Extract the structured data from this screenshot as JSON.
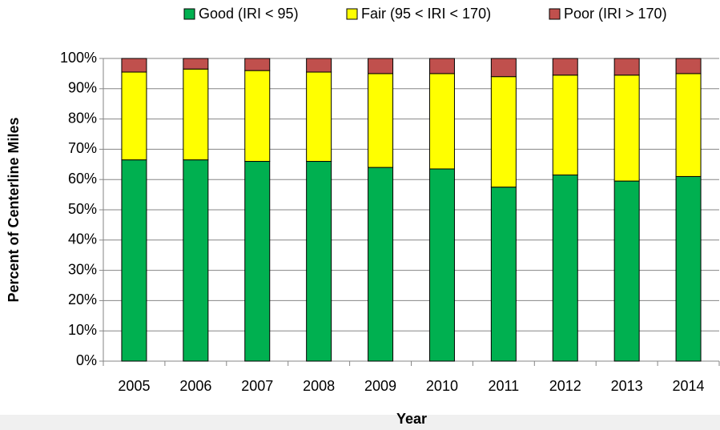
{
  "chart_data": {
    "type": "stacked_bar",
    "categories": [
      "2005",
      "2006",
      "2007",
      "2008",
      "2009",
      "2010",
      "2011",
      "2012",
      "2013",
      "2014"
    ],
    "series": [
      {
        "name": "Good (IRI < 95)",
        "color": "#00b050",
        "values": [
          66.5,
          66.5,
          66,
          66,
          64,
          63.5,
          57.5,
          61.5,
          59.5,
          61
        ]
      },
      {
        "name": "Fair (95 < IRI < 170)",
        "color": "#ffff00",
        "values": [
          29,
          30,
          30,
          29.5,
          31,
          31.5,
          36.5,
          33,
          35,
          34
        ]
      },
      {
        "name": "Poor (IRI > 170)",
        "color": "#c0504d",
        "values": [
          4.5,
          3.5,
          4,
          4.5,
          5,
          5,
          6,
          5.5,
          5.5,
          5
        ]
      }
    ],
    "ylim": [
      0,
      100
    ],
    "yticks": [
      {
        "value": 0,
        "label": "0%"
      },
      {
        "value": 10,
        "label": "10%"
      },
      {
        "value": 20,
        "label": "20%"
      },
      {
        "value": 30,
        "label": "30%"
      },
      {
        "value": 40,
        "label": "40%"
      },
      {
        "value": 50,
        "label": "50%"
      },
      {
        "value": 60,
        "label": "60%"
      },
      {
        "value": 70,
        "label": "70%"
      },
      {
        "value": 80,
        "label": "80%"
      },
      {
        "value": 90,
        "label": "90%"
      },
      {
        "value": 100,
        "label": "100%"
      }
    ],
    "y_label": "Percent of Centerline Miles",
    "x_label": "Year",
    "grid": true,
    "legend": "top"
  }
}
